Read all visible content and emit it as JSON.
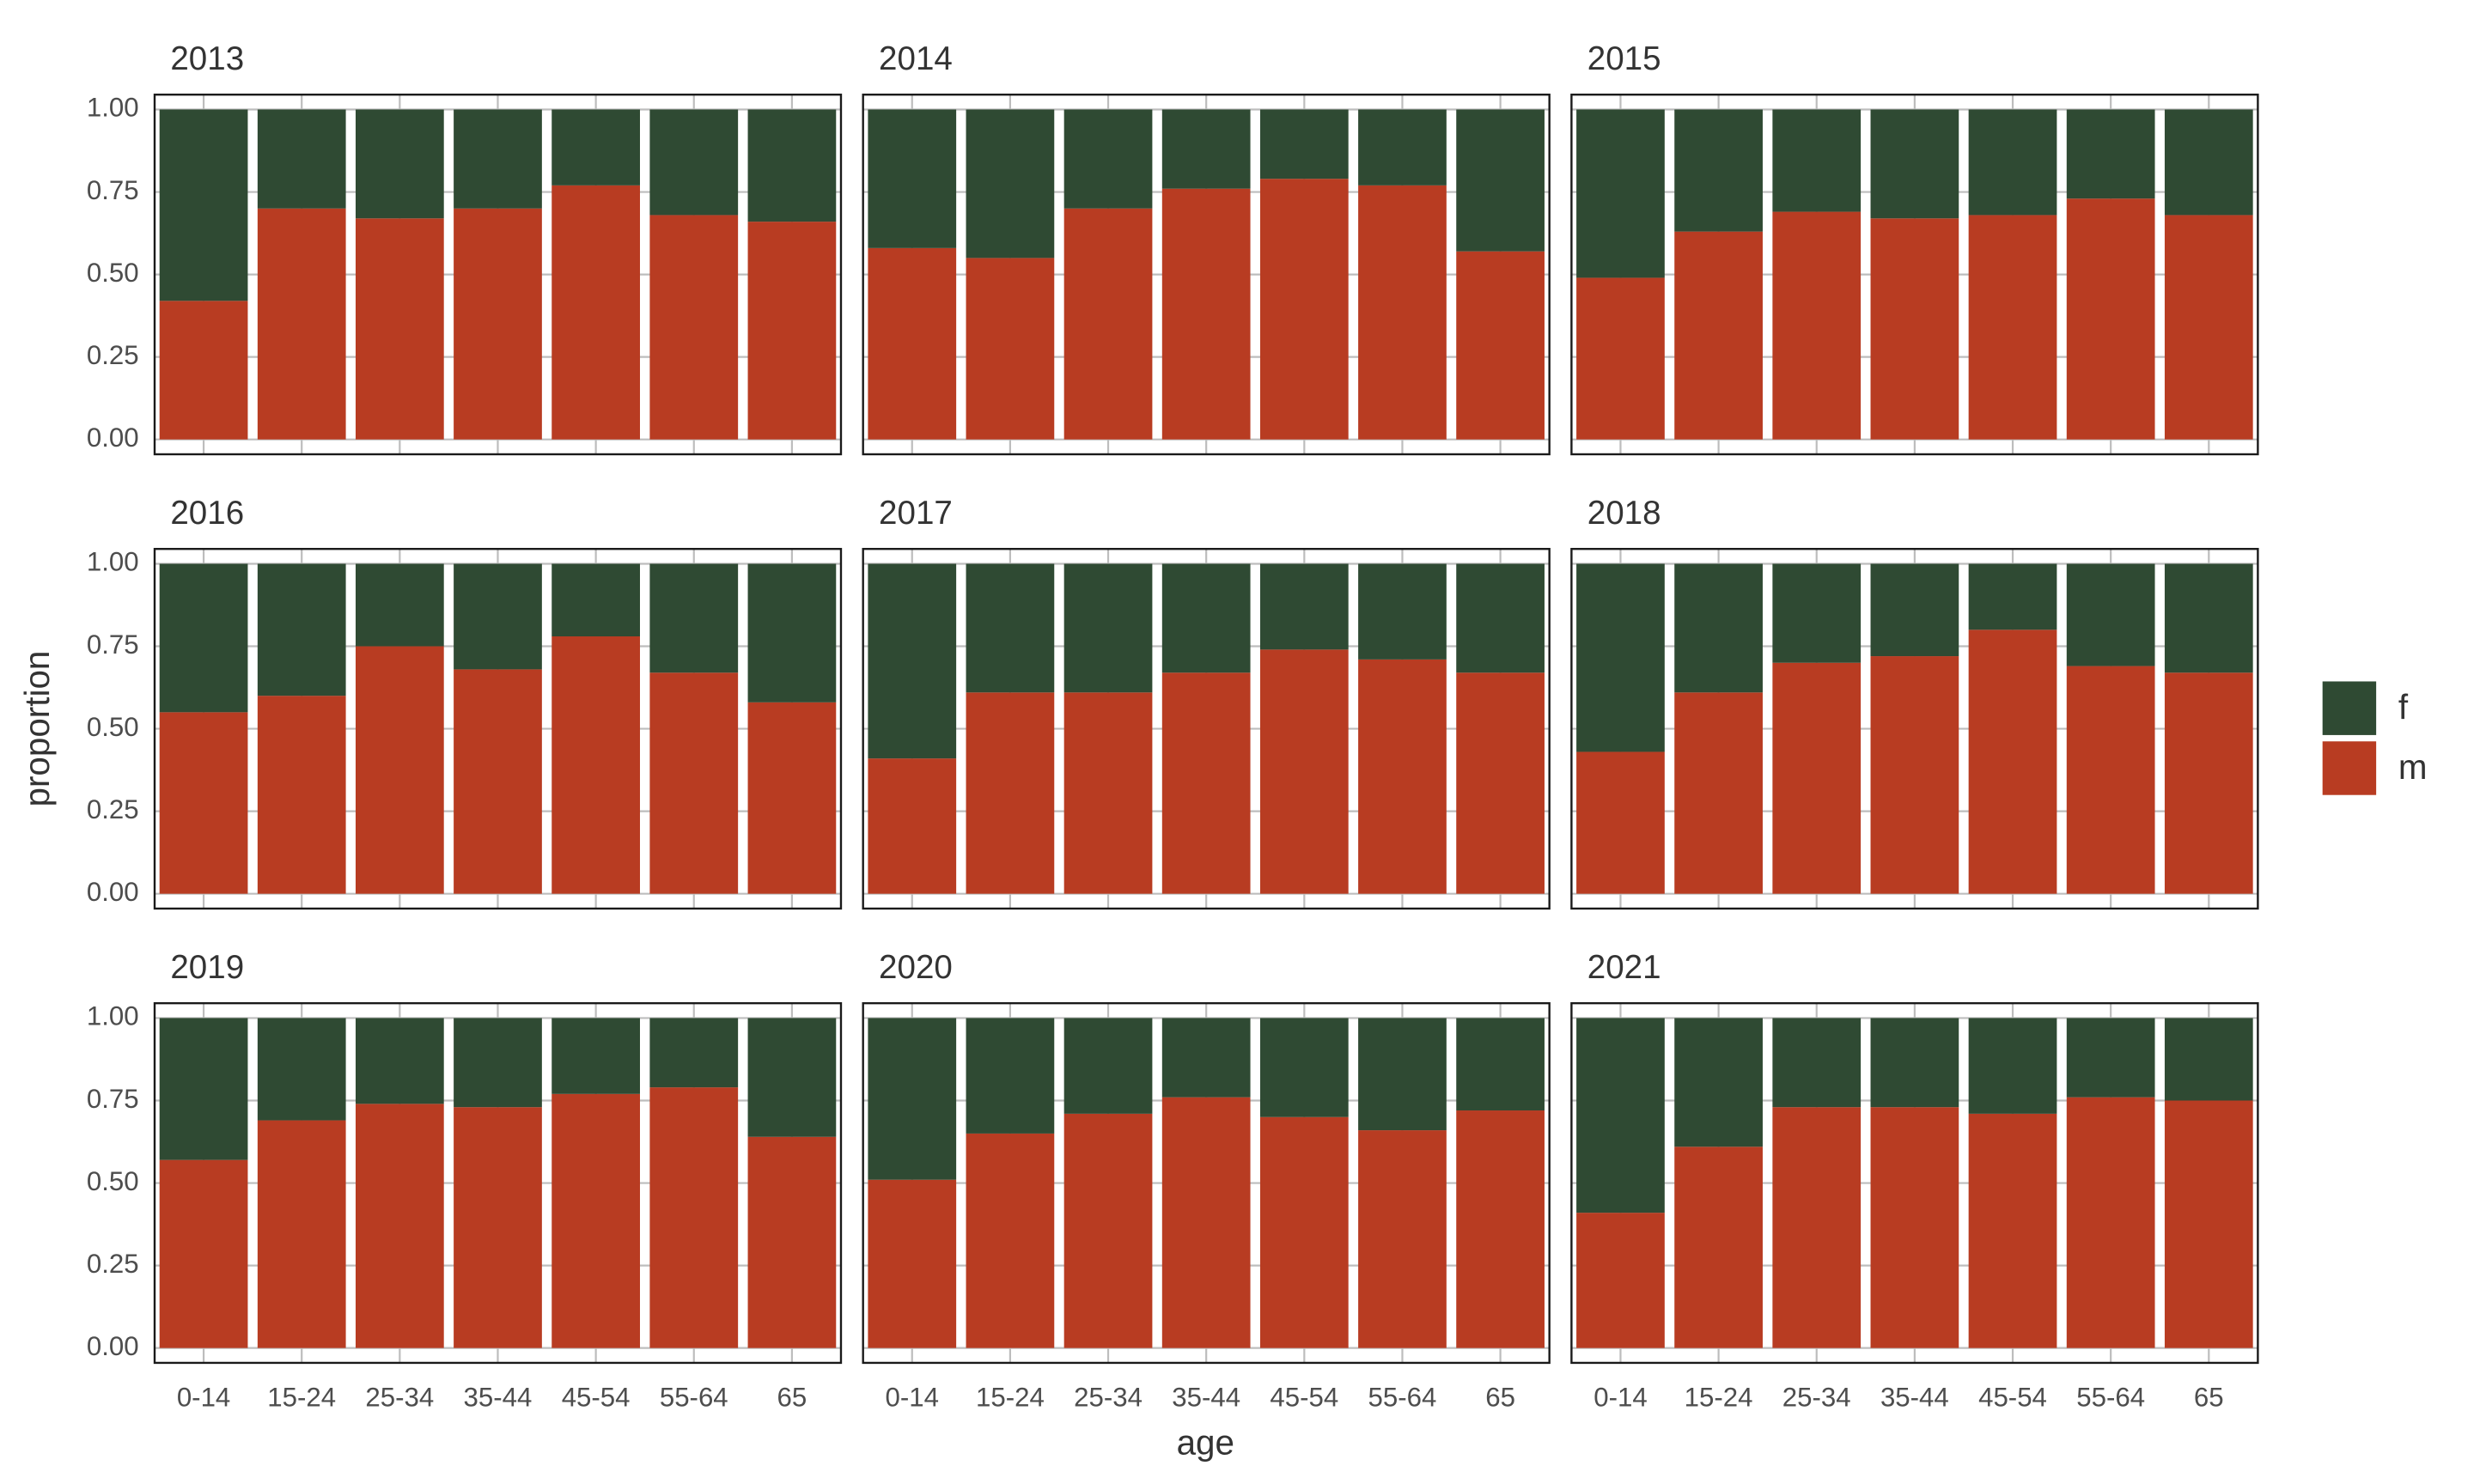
{
  "chart_data": {
    "type": "bar",
    "stacked": true,
    "grid": true,
    "x_label": "age",
    "y_label": "proportion",
    "categories": [
      "0-14",
      "15-24",
      "25-34",
      "35-44",
      "45-54",
      "55-64",
      "65"
    ],
    "ylim": [
      -0.045,
      1.045
    ],
    "yticks": [
      {
        "value": 0,
        "label": "0.00"
      },
      {
        "value": 0.25,
        "label": "0.25"
      },
      {
        "value": 0.5,
        "label": "0.50"
      },
      {
        "value": 0.75,
        "label": "0.75"
      },
      {
        "value": 1,
        "label": "1.00"
      }
    ],
    "legend": "right",
    "series": [
      {
        "name": "f",
        "color": "#2f4a33"
      },
      {
        "name": "m",
        "color": "#b83c22"
      }
    ],
    "facets": [
      {
        "title": "2013",
        "series": [
          {
            "values": [
              0.58,
              0.3,
              0.33,
              0.3,
              0.23,
              0.32,
              0.34
            ]
          },
          {
            "values": [
              0.42,
              0.7,
              0.67,
              0.7,
              0.77,
              0.68,
              0.66
            ]
          }
        ]
      },
      {
        "title": "2014",
        "series": [
          {
            "values": [
              0.42,
              0.45,
              0.3,
              0.24,
              0.21,
              0.23,
              0.43
            ]
          },
          {
            "values": [
              0.58,
              0.55,
              0.7,
              0.76,
              0.79,
              0.77,
              0.57
            ]
          }
        ]
      },
      {
        "title": "2015",
        "series": [
          {
            "values": [
              0.51,
              0.37,
              0.31,
              0.33,
              0.32,
              0.27,
              0.32
            ]
          },
          {
            "values": [
              0.49,
              0.63,
              0.69,
              0.67,
              0.68,
              0.73,
              0.68
            ]
          }
        ]
      },
      {
        "title": "2016",
        "series": [
          {
            "values": [
              0.45,
              0.4,
              0.25,
              0.32,
              0.22,
              0.33,
              0.42
            ]
          },
          {
            "values": [
              0.55,
              0.6,
              0.75,
              0.68,
              0.78,
              0.67,
              0.58
            ]
          }
        ]
      },
      {
        "title": "2017",
        "series": [
          {
            "values": [
              0.59,
              0.39,
              0.39,
              0.33,
              0.26,
              0.29,
              0.33
            ]
          },
          {
            "values": [
              0.41,
              0.61,
              0.61,
              0.67,
              0.74,
              0.71,
              0.67
            ]
          }
        ]
      },
      {
        "title": "2018",
        "series": [
          {
            "values": [
              0.57,
              0.39,
              0.3,
              0.28,
              0.2,
              0.31,
              0.33
            ]
          },
          {
            "values": [
              0.43,
              0.61,
              0.7,
              0.72,
              0.8,
              0.69,
              0.67
            ]
          }
        ]
      },
      {
        "title": "2019",
        "series": [
          {
            "values": [
              0.43,
              0.31,
              0.26,
              0.27,
              0.23,
              0.21,
              0.36
            ]
          },
          {
            "values": [
              0.57,
              0.69,
              0.74,
              0.73,
              0.77,
              0.79,
              0.64
            ]
          }
        ]
      },
      {
        "title": "2020",
        "series": [
          {
            "values": [
              0.49,
              0.35,
              0.29,
              0.24,
              0.3,
              0.34,
              0.28
            ]
          },
          {
            "values": [
              0.51,
              0.65,
              0.71,
              0.76,
              0.7,
              0.66,
              0.72
            ]
          }
        ]
      },
      {
        "title": "2021",
        "series": [
          {
            "values": [
              0.59,
              0.39,
              0.27,
              0.27,
              0.29,
              0.24,
              0.25
            ]
          },
          {
            "values": [
              0.41,
              0.61,
              0.73,
              0.73,
              0.71,
              0.76,
              0.75
            ]
          }
        ]
      }
    ]
  }
}
